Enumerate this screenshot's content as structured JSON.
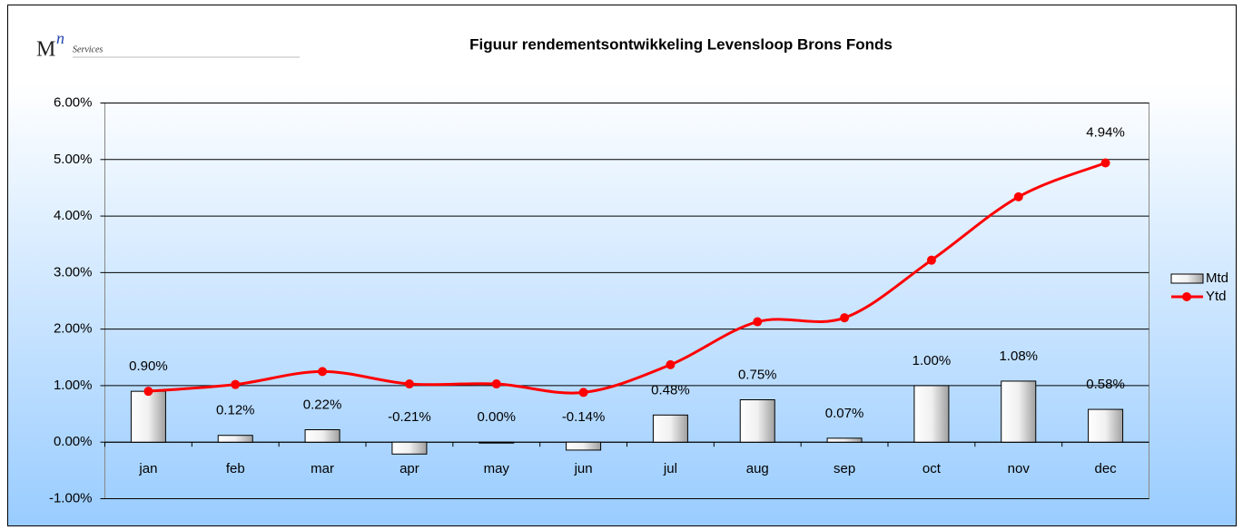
{
  "chart_data": {
    "type": "bar_line",
    "title": "Figuur rendementsontwikkeling Levensloop Brons Fonds",
    "logo": {
      "letter": "M",
      "superscript": "n",
      "text": "Services"
    },
    "categories": [
      "jan",
      "feb",
      "mar",
      "apr",
      "may",
      "jun",
      "jul",
      "aug",
      "sep",
      "oct",
      "nov",
      "dec"
    ],
    "series": [
      {
        "name": "Mtd",
        "type": "bar",
        "color": "#c8c8c8",
        "values": [
          0.9,
          0.12,
          0.22,
          -0.21,
          0.0,
          -0.14,
          0.48,
          0.75,
          0.07,
          1.0,
          1.08,
          0.58
        ],
        "value_labels": [
          "0.90%",
          "0.12%",
          "0.22%",
          "-0.21%",
          "0.00%",
          "-0.14%",
          "0.48%",
          "0.75%",
          "0.07%",
          "1.00%",
          "1.08%",
          "0.58%"
        ]
      },
      {
        "name": "Ytd",
        "type": "line",
        "color": "#ff0000",
        "values": [
          0.9,
          1.02,
          1.25,
          1.03,
          1.03,
          0.88,
          1.37,
          2.13,
          2.2,
          3.22,
          4.34,
          4.94
        ],
        "value_labels": [
          null,
          null,
          null,
          null,
          null,
          null,
          null,
          null,
          null,
          null,
          null,
          "4.94%"
        ]
      }
    ],
    "ylim": [
      -1,
      6
    ],
    "yticks": [
      {
        "value": -1,
        "label": "-1.00%"
      },
      {
        "value": 0,
        "label": "0.00%"
      },
      {
        "value": 1,
        "label": "1.00%"
      },
      {
        "value": 2,
        "label": "2.00%"
      },
      {
        "value": 3,
        "label": "3.00%"
      },
      {
        "value": 4,
        "label": "4.00%"
      },
      {
        "value": 5,
        "label": "5.00%"
      },
      {
        "value": 6,
        "label": "6.00%"
      }
    ],
    "grid": true,
    "legend": "right"
  }
}
